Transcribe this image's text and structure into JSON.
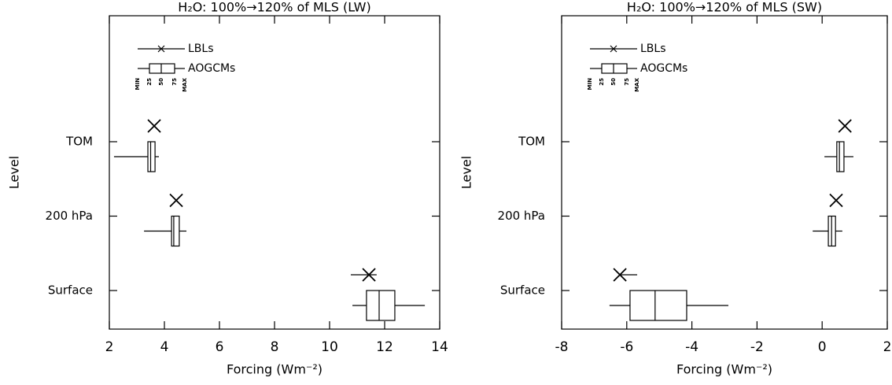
{
  "chart_data": [
    {
      "type": "box",
      "title": "H₂O: 100%→120% of MLS (LW)",
      "xlabel": "Forcing (Wm⁻²)",
      "ylabel": "Level",
      "categories": [
        "TOM",
        "200 hPa",
        "Surface"
      ],
      "xlim": [
        2,
        14
      ],
      "xticks": [
        2,
        4,
        6,
        8,
        10,
        12,
        14
      ],
      "legend_box_labels": [
        "MIN",
        "25",
        "50",
        "75",
        "MAX"
      ],
      "lbl": {
        "name": "LBLs",
        "values": [
          3.63,
          4.43,
          11.43
        ],
        "low": [
          3.6,
          4.4,
          10.77
        ],
        "high": [
          3.66,
          4.46,
          11.71
        ]
      },
      "aogcm": {
        "name": "AOGCMs",
        "min": [
          2.17,
          3.26,
          10.83
        ],
        "q1": [
          3.4,
          4.26,
          11.34
        ],
        "median": [
          3.5,
          4.34,
          11.8
        ],
        "q3": [
          3.66,
          4.54,
          12.37
        ],
        "max": [
          3.8,
          4.8,
          13.46
        ]
      }
    },
    {
      "type": "box",
      "title": "H₂O: 100%→120% of MLS (SW)",
      "xlabel": "Forcing (Wm⁻²)",
      "ylabel": "Level",
      "categories": [
        "TOM",
        "200 hPa",
        "Surface"
      ],
      "xlim": [
        -8,
        2
      ],
      "xticks": [
        -8,
        -6,
        -4,
        -2,
        0,
        2
      ],
      "legend_box_labels": [
        "MIN",
        "25",
        "50",
        "75",
        "MAX"
      ],
      "lbl": {
        "name": "LBLs",
        "values": [
          0.7,
          0.43,
          -6.21
        ],
        "low": [
          0.67,
          0.4,
          -6.21
        ],
        "high": [
          0.73,
          0.46,
          -5.68
        ]
      },
      "aogcm": {
        "name": "AOGCMs",
        "min": [
          0.07,
          -0.29,
          -6.53
        ],
        "q1": [
          0.45,
          0.19,
          -5.9
        ],
        "median": [
          0.53,
          0.29,
          -5.13
        ],
        "q3": [
          0.67,
          0.41,
          -4.16
        ],
        "max": [
          0.96,
          0.62,
          -2.88
        ]
      }
    }
  ]
}
